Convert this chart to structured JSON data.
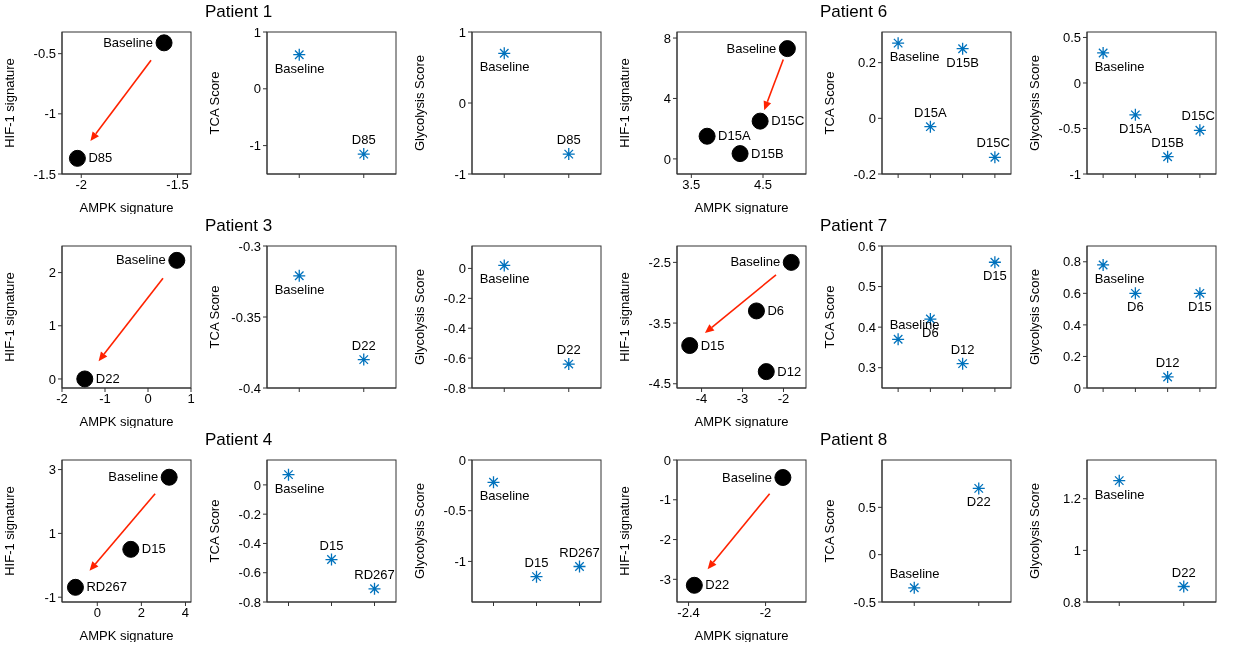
{
  "chart_data": [
    {
      "type": "scatter",
      "xlabel": "AMPK signature",
      "ylabel": "HIF-1 signature",
      "marker": "circle",
      "xlim": [
        -2.1,
        -1.43
      ],
      "xticks": [
        -2,
        -1.5
      ],
      "ylim": [
        -1.5,
        -0.32
      ],
      "yticks": [
        -1.5,
        -1,
        -0.5
      ],
      "series": [
        {
          "name": "Baseline",
          "color": "#000000",
          "x": [
            -1.57
          ],
          "values": [
            -0.41
          ]
        },
        {
          "name": "D85",
          "color": "#000000",
          "x": [
            -2.02
          ],
          "values": [
            -1.37
          ]
        }
      ]
    },
    {
      "type": "scatter",
      "title": "Patient 1",
      "ylabel": "TCA Score",
      "marker": "cross",
      "tick_labels": "y",
      "categories": [
        null,
        null
      ],
      "ylim": [
        -1.5,
        1
      ],
      "yticks": [
        -1,
        0,
        1
      ],
      "series": [
        {
          "name": "Baseline",
          "color": "#0072bd",
          "values": [
            0.6,
            null
          ]
        },
        {
          "name": "D85",
          "color": "#0072bd",
          "values": [
            null,
            -1.15
          ]
        }
      ]
    },
    {
      "type": "scatter",
      "ylabel": "Glycolysis Score",
      "marker": "cross",
      "tick_labels": "y",
      "categories": [
        null,
        null
      ],
      "ylim": [
        -1,
        1
      ],
      "yticks": [
        -1,
        0,
        1
      ],
      "series": [
        {
          "name": "Baseline",
          "color": "#0072bd",
          "values": [
            0.7,
            null
          ]
        },
        {
          "name": "D85",
          "color": "#0072bd",
          "values": [
            null,
            -0.72
          ]
        }
      ]
    },
    {
      "type": "scatter",
      "xlabel": "AMPK signature",
      "ylabel": "HIF-1 signature",
      "marker": "circle",
      "xlim": [
        3.3,
        5.1
      ],
      "xticks": [
        3.5,
        4.5
      ],
      "ylim": [
        -1,
        8.4
      ],
      "yticks": [
        0,
        4,
        8
      ],
      "series": [
        {
          "name": "Baseline",
          "color": "#000000",
          "x": [
            4.84
          ],
          "values": [
            7.3
          ]
        },
        {
          "name": "D15A",
          "color": "#000000",
          "x": [
            3.72
          ],
          "values": [
            1.5
          ]
        },
        {
          "name": "D15B",
          "color": "#000000",
          "x": [
            4.18
          ],
          "values": [
            0.35
          ]
        },
        {
          "name": "D15C",
          "color": "#000000",
          "x": [
            4.46
          ],
          "values": [
            2.5
          ]
        }
      ]
    },
    {
      "type": "scatter",
      "title": "Patient 6",
      "ylabel": "TCA Score",
      "marker": "cross",
      "tick_labels": "y",
      "categories": [
        null,
        null,
        null,
        null
      ],
      "ylim": [
        -0.2,
        0.31
      ],
      "yticks": [
        -0.2,
        0,
        0.2
      ],
      "series": [
        {
          "name": "Baseline",
          "color": "#0072bd",
          "values": [
            0.27,
            null,
            null,
            null
          ]
        },
        {
          "name": "D15A",
          "color": "#0072bd",
          "values": [
            null,
            -0.03,
            null,
            null
          ]
        },
        {
          "name": "D15B",
          "color": "#0072bd",
          "values": [
            null,
            null,
            0.25,
            null
          ]
        },
        {
          "name": "D15C",
          "color": "#0072bd",
          "values": [
            null,
            null,
            null,
            -0.14
          ]
        }
      ]
    },
    {
      "type": "scatter",
      "ylabel": "Glycolysis Score",
      "marker": "cross",
      "tick_labels": "y",
      "categories": [
        null,
        null,
        null,
        null
      ],
      "ylim": [
        -1,
        0.56
      ],
      "yticks": [
        -1,
        -0.5,
        0,
        0.5
      ],
      "series": [
        {
          "name": "Baseline",
          "color": "#0072bd",
          "values": [
            0.33,
            null,
            null,
            null
          ]
        },
        {
          "name": "D15A",
          "color": "#0072bd",
          "values": [
            null,
            -0.35,
            null,
            null
          ]
        },
        {
          "name": "D15B",
          "color": "#0072bd",
          "values": [
            null,
            null,
            -0.81,
            null
          ]
        },
        {
          "name": "D15C",
          "color": "#0072bd",
          "values": [
            null,
            null,
            null,
            -0.52
          ]
        }
      ]
    },
    {
      "type": "scatter",
      "xlabel": "AMPK signature",
      "ylabel": "HIF-1 signature",
      "marker": "circle",
      "xlim": [
        -2,
        1
      ],
      "xticks": [
        -2,
        -1,
        0,
        1
      ],
      "ylim": [
        -0.17,
        2.5
      ],
      "yticks": [
        0,
        1,
        2
      ],
      "series": [
        {
          "name": "Baseline",
          "color": "#000000",
          "x": [
            0.67
          ],
          "values": [
            2.23
          ]
        },
        {
          "name": "D22",
          "color": "#000000",
          "x": [
            -1.47
          ],
          "values": [
            0
          ]
        }
      ]
    },
    {
      "type": "scatter",
      "title": "Patient 3",
      "ylabel": "TCA Score",
      "marker": "cross",
      "tick_labels": "y",
      "categories": [
        null,
        null
      ],
      "ylim": [
        -0.4,
        -0.3
      ],
      "yticks": [
        -0.4,
        -0.35,
        -0.3
      ],
      "series": [
        {
          "name": "Baseline",
          "color": "#0072bd",
          "values": [
            -0.321,
            null
          ]
        },
        {
          "name": "D22",
          "color": "#0072bd",
          "values": [
            null,
            -0.38
          ]
        }
      ]
    },
    {
      "type": "scatter",
      "ylabel": "Glycolysis Score",
      "marker": "cross",
      "tick_labels": "y",
      "categories": [
        null,
        null
      ],
      "ylim": [
        -0.8,
        0.15
      ],
      "yticks": [
        -0.8,
        -0.6,
        -0.4,
        -0.2,
        0
      ],
      "series": [
        {
          "name": "Baseline",
          "color": "#0072bd",
          "values": [
            0.02,
            null
          ]
        },
        {
          "name": "D22",
          "color": "#0072bd",
          "values": [
            null,
            -0.64
          ]
        }
      ]
    },
    {
      "type": "scatter",
      "xlabel": "AMPK signature",
      "ylabel": "HIF-1 signature",
      "marker": "circle",
      "xlim": [
        -4.6,
        -1.45
      ],
      "xticks": [
        -4,
        -3,
        -2
      ],
      "ylim": [
        -4.57,
        -2.23
      ],
      "yticks": [
        -4.5,
        -3.5,
        -2.5
      ],
      "series": [
        {
          "name": "Baseline",
          "color": "#000000",
          "x": [
            -1.81
          ],
          "values": [
            -2.5
          ]
        },
        {
          "name": "D6",
          "color": "#000000",
          "x": [
            -2.66
          ],
          "values": [
            -3.3
          ]
        },
        {
          "name": "D12",
          "color": "#000000",
          "x": [
            -2.42
          ],
          "values": [
            -4.3
          ]
        },
        {
          "name": "D15",
          "color": "#000000",
          "x": [
            -4.29
          ],
          "values": [
            -3.87
          ]
        }
      ]
    },
    {
      "type": "scatter",
      "title": "Patient 7",
      "ylabel": "TCA Score",
      "marker": "cross",
      "tick_labels": "y",
      "categories": [
        null,
        null,
        null,
        null
      ],
      "ylim": [
        0.25,
        0.6
      ],
      "yticks": [
        0.3,
        0.4,
        0.5,
        0.6
      ],
      "series": [
        {
          "name": "Baseline",
          "color": "#0072bd",
          "values": [
            0.37,
            null,
            null,
            null
          ]
        },
        {
          "name": "D6",
          "color": "#0072bd",
          "values": [
            null,
            0.42,
            null,
            null
          ]
        },
        {
          "name": "D12",
          "color": "#0072bd",
          "values": [
            null,
            null,
            0.31,
            null
          ]
        },
        {
          "name": "D15",
          "color": "#0072bd",
          "values": [
            null,
            null,
            null,
            0.56
          ]
        }
      ]
    },
    {
      "type": "scatter",
      "ylabel": "Glycolysis Score",
      "marker": "cross",
      "tick_labels": "y",
      "categories": [
        null,
        null,
        null,
        null
      ],
      "ylim": [
        0,
        0.9
      ],
      "yticks": [
        0,
        0.2,
        0.4,
        0.6,
        0.8
      ],
      "series": [
        {
          "name": "Baseline",
          "color": "#0072bd",
          "values": [
            0.78,
            null,
            null,
            null
          ]
        },
        {
          "name": "D6",
          "color": "#0072bd",
          "values": [
            null,
            0.6,
            null,
            null
          ]
        },
        {
          "name": "D12",
          "color": "#0072bd",
          "values": [
            null,
            null,
            0.07,
            null
          ]
        },
        {
          "name": "D15",
          "color": "#0072bd",
          "values": [
            null,
            null,
            null,
            0.6
          ]
        }
      ]
    },
    {
      "type": "scatter",
      "xlabel": "AMPK signature",
      "ylabel": "HIF-1 signature",
      "marker": "circle",
      "xlim": [
        -1.6,
        4.25
      ],
      "xticks": [
        0,
        2,
        4
      ],
      "ylim": [
        -1.15,
        3.3
      ],
      "yticks": [
        -1,
        1,
        3
      ],
      "series": [
        {
          "name": "Baseline",
          "color": "#000000",
          "x": [
            3.26
          ],
          "values": [
            2.76
          ]
        },
        {
          "name": "D15",
          "color": "#000000",
          "x": [
            1.52
          ],
          "values": [
            0.5
          ]
        },
        {
          "name": "RD267",
          "color": "#000000",
          "x": [
            -0.99
          ],
          "values": [
            -0.69
          ]
        }
      ]
    },
    {
      "type": "scatter",
      "title": "Patient 4",
      "ylabel": "TCA Score",
      "marker": "cross",
      "tick_labels": "y",
      "categories": [
        null,
        null,
        null
      ],
      "ylim": [
        -0.8,
        0.17
      ],
      "yticks": [
        -0.8,
        -0.6,
        -0.4,
        -0.2,
        0
      ],
      "series": [
        {
          "name": "Baseline",
          "color": "#0072bd",
          "values": [
            0.07,
            null,
            null
          ]
        },
        {
          "name": "D15",
          "color": "#0072bd",
          "values": [
            null,
            -0.51,
            null
          ]
        },
        {
          "name": "RD267",
          "color": "#0072bd",
          "values": [
            null,
            null,
            -0.71
          ]
        }
      ]
    },
    {
      "type": "scatter",
      "ylabel": "Glycolysis Score",
      "marker": "cross",
      "tick_labels": "y",
      "categories": [
        null,
        null,
        null
      ],
      "ylim": [
        -1.4,
        0
      ],
      "yticks": [
        -1,
        -0.5,
        0
      ],
      "series": [
        {
          "name": "Baseline",
          "color": "#0072bd",
          "values": [
            -0.22,
            null,
            null
          ]
        },
        {
          "name": "D15",
          "color": "#0072bd",
          "values": [
            null,
            -1.15,
            null
          ]
        },
        {
          "name": "RD267",
          "color": "#0072bd",
          "values": [
            null,
            null,
            -1.05
          ]
        }
      ]
    },
    {
      "type": "scatter",
      "xlabel": "AMPK signature",
      "ylabel": "HIF-1 signature",
      "marker": "circle",
      "xlim": [
        -2.46,
        -1.79
      ],
      "xticks": [
        -2.4,
        -2
      ],
      "ylim": [
        -3.57,
        0
      ],
      "yticks": [
        -3,
        -2,
        -1,
        0
      ],
      "series": [
        {
          "name": "Baseline",
          "color": "#000000",
          "x": [
            -1.91
          ],
          "values": [
            -0.44
          ]
        },
        {
          "name": "D22",
          "color": "#000000",
          "x": [
            -2.37
          ],
          "values": [
            -3.15
          ]
        }
      ]
    },
    {
      "type": "scatter",
      "title": "Patient 8",
      "ylabel": "TCA Score",
      "marker": "cross",
      "tick_labels": "y",
      "categories": [
        null,
        null
      ],
      "ylim": [
        -0.5,
        1
      ],
      "yticks": [
        -0.5,
        0,
        0.5
      ],
      "series": [
        {
          "name": "Baseline",
          "color": "#0072bd",
          "values": [
            -0.35,
            null
          ]
        },
        {
          "name": "D22",
          "color": "#0072bd",
          "values": [
            null,
            0.7
          ]
        }
      ]
    },
    {
      "type": "scatter",
      "ylabel": "Glycolysis Score",
      "marker": "cross",
      "tick_labels": "y",
      "categories": [
        null,
        null
      ],
      "ylim": [
        0.8,
        1.35
      ],
      "yticks": [
        0.8,
        1,
        1.2
      ],
      "series": [
        {
          "name": "Baseline",
          "color": "#0072bd",
          "values": [
            1.27,
            null
          ]
        },
        {
          "name": "D22",
          "color": "#0072bd",
          "values": [
            null,
            0.86
          ]
        }
      ]
    }
  ]
}
